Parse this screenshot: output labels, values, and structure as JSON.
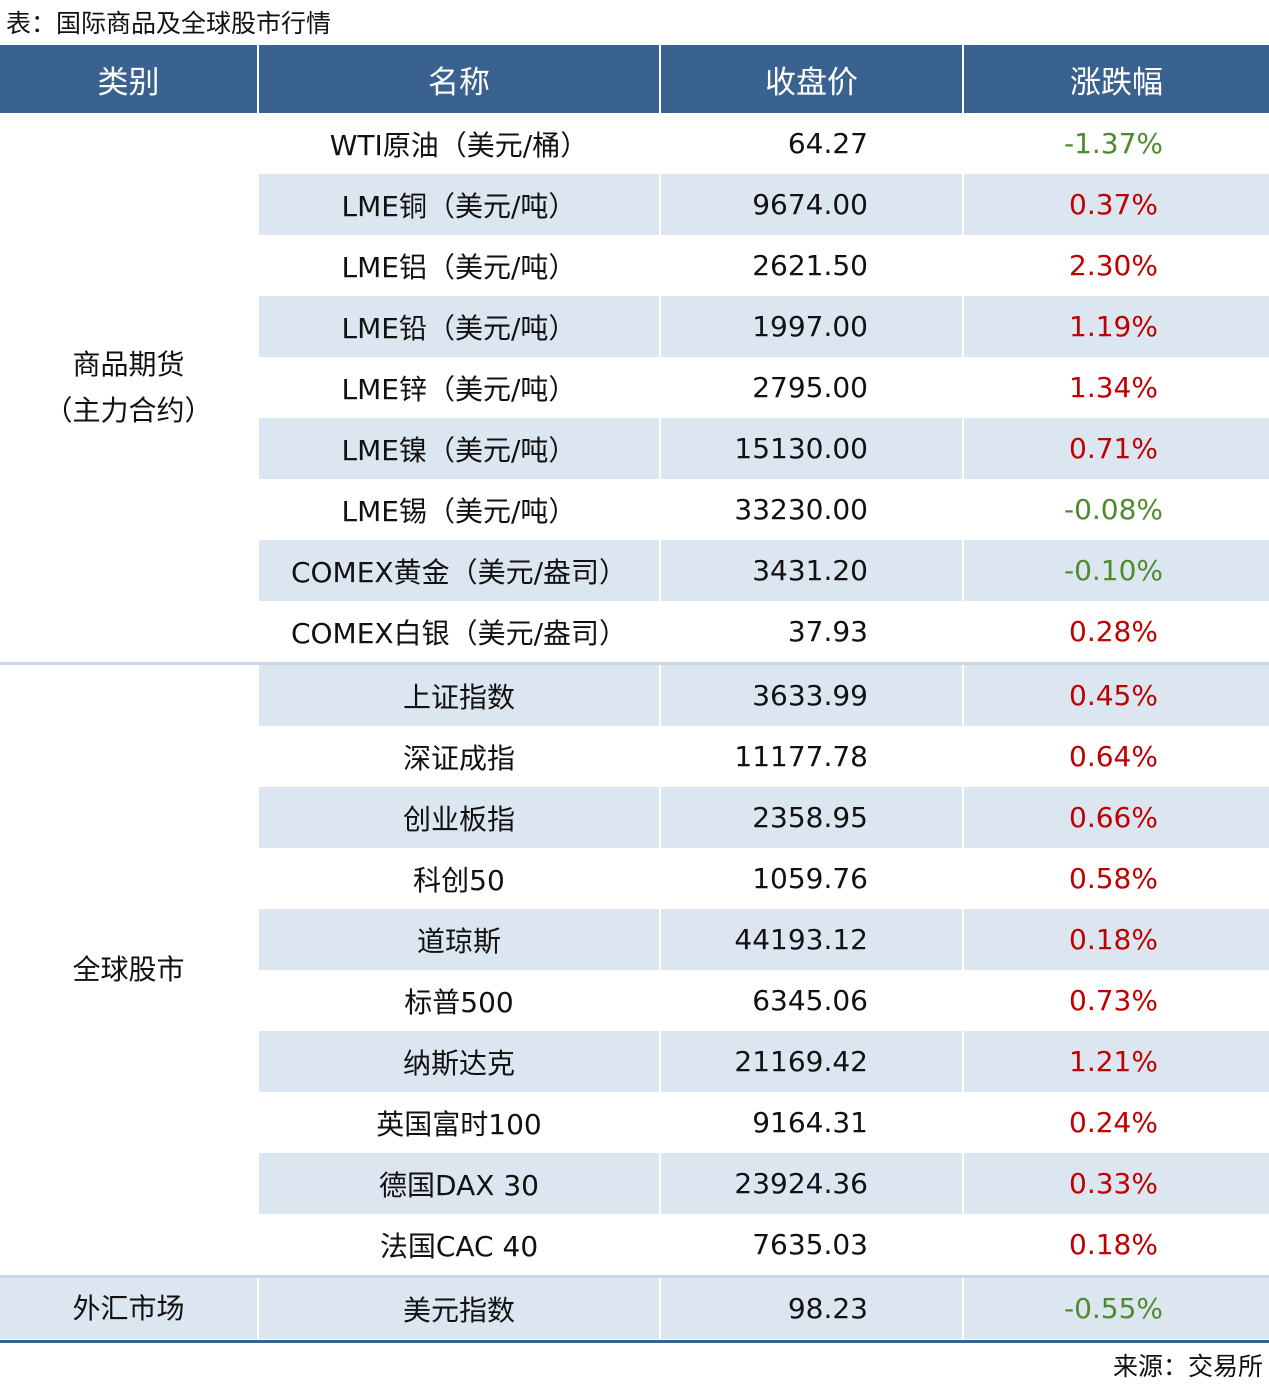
{
  "title": "表：国际商品及全球股市行情",
  "table": {
    "header": [
      "类别",
      "名称",
      "收盘价",
      "涨跌幅"
    ],
    "groups": [
      {
        "category": [
          "商品期货",
          "（主力合约）"
        ],
        "rows": [
          [
            "WTI原油（美元/桶）",
            "64.27",
            "-1.37%"
          ],
          [
            "LME铜（美元/吨）",
            "9674.00",
            "0.37%"
          ],
          [
            "LME铝（美元/吨）",
            "2621.50",
            "2.30%"
          ],
          [
            "LME铅（美元/吨）",
            "1997.00",
            "1.19%"
          ],
          [
            "LME锌（美元/吨）",
            "2795.00",
            "1.34%"
          ],
          [
            "LME镍（美元/吨）",
            "15130.00",
            "0.71%"
          ],
          [
            "LME锡（美元/吨）",
            "33230.00",
            "-0.08%"
          ],
          [
            "COMEX黄金（美元/盎司）",
            "3431.20",
            "-0.10%"
          ],
          [
            "COMEX白银（美元/盎司）",
            "37.93",
            "0.28%"
          ]
        ]
      },
      {
        "category": [
          "全球股市"
        ],
        "rows": [
          [
            "上证指数",
            "3633.99",
            "0.45%"
          ],
          [
            "深证成指",
            "11177.78",
            "0.64%"
          ],
          [
            "创业板指",
            "2358.95",
            "0.66%"
          ],
          [
            "科创50",
            "1059.76",
            "0.58%"
          ],
          [
            "道琼斯",
            "44193.12",
            "0.18%"
          ],
          [
            "标普500",
            "6345.06",
            "0.73%"
          ],
          [
            "纳斯达克",
            "21169.42",
            "1.21%"
          ],
          [
            "英国富时100",
            "9164.31",
            "0.24%"
          ],
          [
            "德国DAX 30",
            "23924.36",
            "0.33%"
          ],
          [
            "法国CAC 40",
            "7635.03",
            "0.18%"
          ]
        ]
      },
      {
        "category": [
          "外汇市场"
        ],
        "rows": [
          [
            "美元指数",
            "98.23",
            "-0.55%"
          ]
        ]
      }
    ]
  },
  "source": "来源：交易所"
}
